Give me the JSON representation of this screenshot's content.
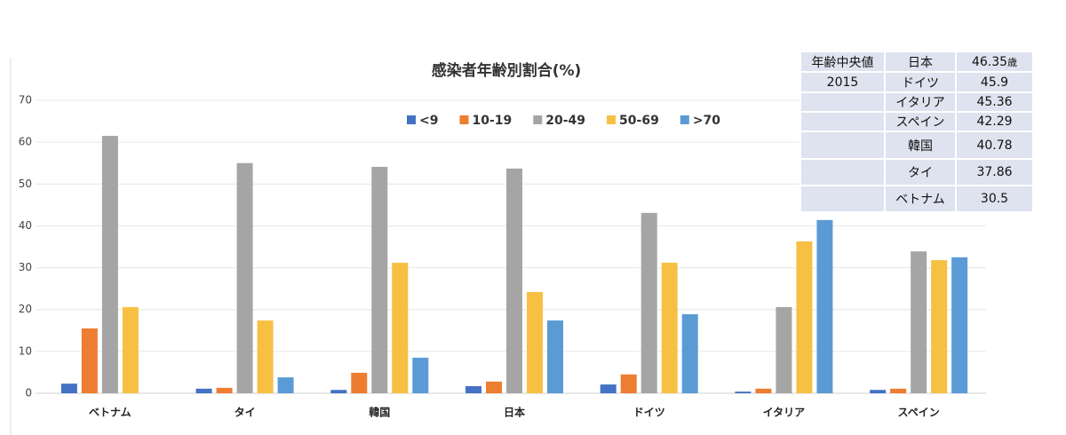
{
  "chart_data": {
    "type": "bar",
    "title": "感染者年齢別割合(%)",
    "categories": [
      "ベトナム",
      "タイ",
      "韓国",
      "日本",
      "ドイツ",
      "イタリア",
      "スペイン"
    ],
    "series": [
      {
        "name": "<9",
        "color": "#4472c4",
        "values": [
          2.3,
          1.1,
          0.8,
          1.7,
          2.1,
          0.4,
          0.8
        ]
      },
      {
        "name": "10-19",
        "color": "#ed7d31",
        "values": [
          15.5,
          1.3,
          4.9,
          2.8,
          4.5,
          1.1,
          1.1
        ]
      },
      {
        "name": "20-49",
        "color": "#a5a5a5",
        "values": [
          61.5,
          55,
          54.1,
          53.7,
          43.1,
          20.6,
          33.9
        ]
      },
      {
        "name": "50-69",
        "color": "#f6c143",
        "values": [
          20.6,
          17.4,
          31.2,
          24.2,
          31.2,
          36.3,
          31.8
        ]
      },
      {
        "name": ">70",
        "color": "#5b9bd5",
        "values": [
          0,
          3.8,
          8.5,
          17.4,
          18.9,
          41.4,
          32.5
        ]
      }
    ],
    "ylim": [
      0,
      70
    ],
    "yticks": [
      0,
      10,
      20,
      30,
      40,
      50,
      60,
      70
    ],
    "grid": true,
    "legend": "top"
  },
  "table": {
    "label": "年齢中央値",
    "year": "2015",
    "unit": "歳",
    "rows": [
      [
        "日本",
        "46.35"
      ],
      [
        "ドイツ",
        "45.9"
      ],
      [
        "イタリア",
        "45.36"
      ],
      [
        "スペイン",
        "42.29"
      ],
      [
        "韓国",
        "40.78"
      ],
      [
        "タイ",
        "37.86"
      ],
      [
        "ベトナム",
        "30.5"
      ]
    ]
  }
}
